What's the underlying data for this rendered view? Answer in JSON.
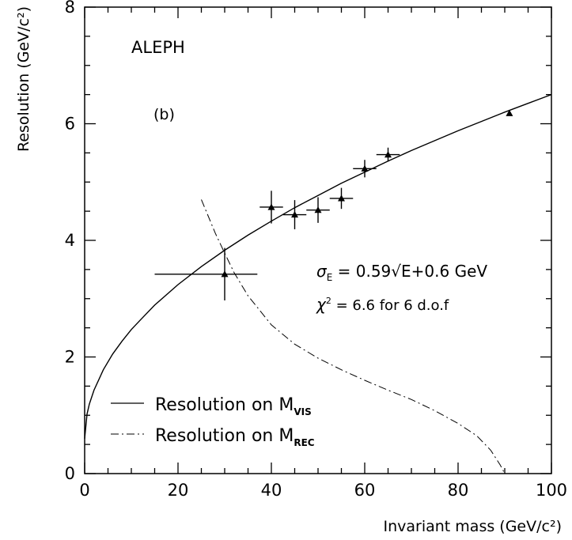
{
  "chart_data": {
    "type": "scatter",
    "title": "",
    "experiment_label": "ALEPH",
    "panel_label": "(b)",
    "xlabel": "Invariant mass (GeV/c²)",
    "ylabel": "Resolution (GeV/c²)",
    "xlim": [
      0,
      100
    ],
    "ylim": [
      0,
      8
    ],
    "x_ticks": [
      "0",
      "20",
      "40",
      "60",
      "80",
      "100"
    ],
    "y_ticks": [
      "0",
      "2",
      "4",
      "6",
      "8"
    ],
    "grid": false,
    "formula": {
      "sigma": "σ",
      "sub": "E",
      "text": " = 0.59√E+0.6 GeV"
    },
    "chi2": {
      "chi": "χ",
      "sup": "2",
      "text": " = 6.6 for 6 d.o.f"
    },
    "legend": [
      {
        "prefix": "Resolution on M",
        "sub": "VIS",
        "style": "solid"
      },
      {
        "prefix": "Resolution on M",
        "sub": "REC",
        "style": "dash-dot"
      }
    ],
    "data_points": [
      {
        "x": 30,
        "y": 3.42,
        "xerr_low": 15,
        "xerr_high": 7,
        "yerr": 0.45
      },
      {
        "x": 40,
        "y": 4.57,
        "xerr_low": 2.5,
        "xerr_high": 2.5,
        "yerr": 0.28
      },
      {
        "x": 45,
        "y": 4.44,
        "xerr_low": 2.5,
        "xerr_high": 2.5,
        "yerr": 0.25
      },
      {
        "x": 50,
        "y": 4.52,
        "xerr_low": 2.5,
        "xerr_high": 2.5,
        "yerr": 0.22
      },
      {
        "x": 55,
        "y": 4.72,
        "xerr_low": 2.5,
        "xerr_high": 2.5,
        "yerr": 0.18
      },
      {
        "x": 60,
        "y": 5.23,
        "xerr_low": 2.5,
        "xerr_high": 2.5,
        "yerr": 0.15
      },
      {
        "x": 65,
        "y": 5.47,
        "xerr_low": 2.5,
        "xerr_high": 2.5,
        "yerr": 0.12
      },
      {
        "x": 91,
        "y": 6.18,
        "xerr_low": 0,
        "xerr_high": 0,
        "yerr": 0
      }
    ],
    "series": [
      {
        "style": "solid",
        "x": [
          0,
          0.5,
          1,
          2,
          4,
          6,
          8,
          10,
          12,
          15,
          20,
          25,
          30,
          35,
          40,
          45,
          50,
          55,
          60,
          65,
          70,
          75,
          80,
          85,
          90,
          95,
          100
        ],
        "values": [
          0.6,
          1.02,
          1.19,
          1.43,
          1.78,
          2.05,
          2.27,
          2.47,
          2.64,
          2.89,
          3.24,
          3.55,
          3.83,
          4.09,
          4.33,
          4.56,
          4.77,
          4.98,
          5.17,
          5.36,
          5.54,
          5.71,
          5.88,
          6.04,
          6.2,
          6.35,
          6.5
        ]
      },
      {
        "style": "dash-dot",
        "x": [
          25,
          28,
          30,
          32,
          35,
          40,
          45,
          50,
          55,
          60,
          65,
          70,
          75,
          80,
          84,
          87,
          89,
          90
        ],
        "values": [
          4.7,
          4.12,
          3.78,
          3.45,
          3.05,
          2.55,
          2.22,
          1.98,
          1.78,
          1.6,
          1.43,
          1.27,
          1.08,
          0.86,
          0.65,
          0.4,
          0.15,
          0.0
        ]
      }
    ]
  }
}
